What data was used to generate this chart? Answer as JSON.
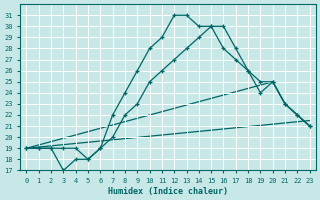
{
  "xlabel": "Humidex (Indice chaleur)",
  "bg_color": "#c8e8e8",
  "grid_color": "#ffffff",
  "line_color": "#006666",
  "xlim": [
    -0.5,
    23.5
  ],
  "ylim": [
    17,
    32
  ],
  "xticks": [
    0,
    1,
    2,
    3,
    4,
    5,
    6,
    7,
    8,
    9,
    10,
    11,
    12,
    13,
    14,
    15,
    16,
    17,
    18,
    19,
    20,
    21,
    22,
    23
  ],
  "yticks": [
    17,
    18,
    19,
    20,
    21,
    22,
    23,
    24,
    25,
    26,
    27,
    28,
    29,
    30,
    31
  ],
  "curve1_x": [
    0,
    1,
    2,
    3,
    4,
    5,
    6,
    7,
    8,
    9,
    10,
    11,
    12,
    13,
    14,
    15,
    16,
    17,
    18,
    19,
    20,
    21,
    22,
    23
  ],
  "curve1_y": [
    19,
    19,
    19,
    19,
    19,
    18,
    19,
    20,
    22,
    23,
    25,
    26,
    27,
    28,
    29,
    30,
    30,
    28,
    26,
    25,
    25,
    23,
    22,
    21
  ],
  "curve2_x": [
    0,
    1,
    2,
    3,
    4,
    5,
    6,
    7,
    8,
    9,
    10,
    11,
    12,
    13,
    14,
    15,
    16,
    17,
    18,
    19,
    20,
    21,
    22,
    23
  ],
  "curve2_y": [
    19,
    19,
    19,
    17,
    18,
    18,
    19,
    22,
    24,
    26,
    28,
    29,
    31,
    31,
    30,
    30,
    28,
    27,
    26,
    24,
    25,
    23,
    22,
    21
  ],
  "line3_x": [
    0,
    20,
    21,
    22,
    23
  ],
  "line3_y": [
    19,
    25,
    23,
    22,
    21
  ],
  "line4_x": [
    0,
    23
  ],
  "line4_y": [
    19,
    21.5
  ]
}
